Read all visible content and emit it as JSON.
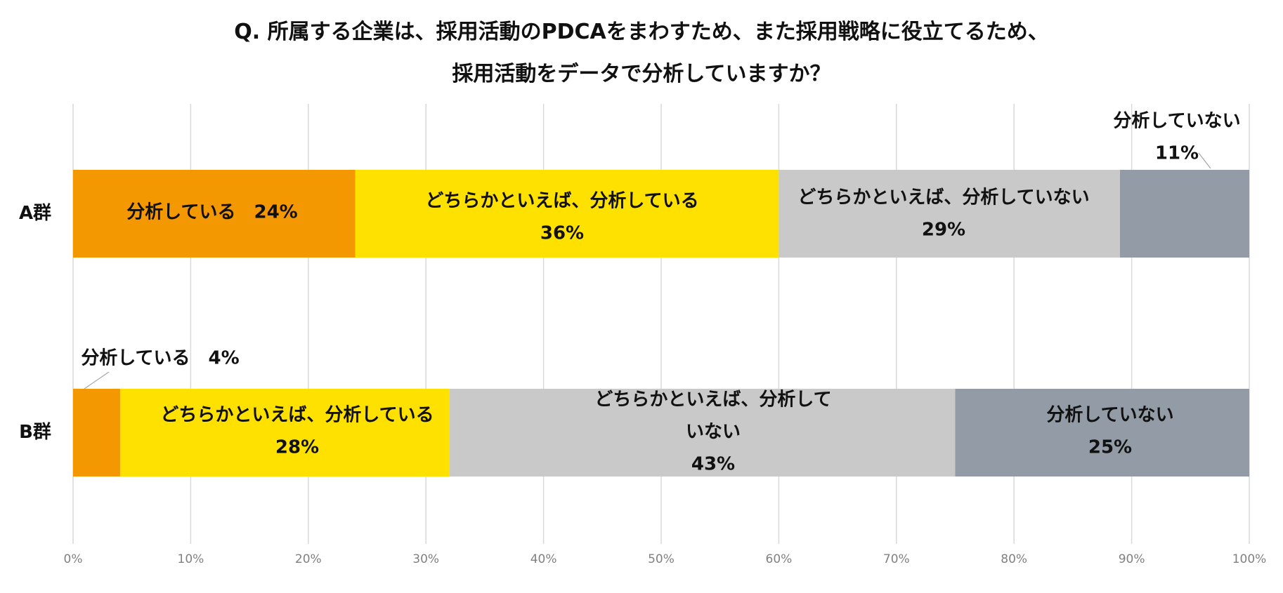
{
  "title": [
    "Q. 所属する企業は、採用活動のPDCAをまわすため、また採用戦略に役立てるため、",
    "採用活動をデータで分析していますか？"
  ],
  "chart_data": {
    "type": "bar",
    "orientation": "horizontal",
    "stacked": true,
    "categories": [
      "A群",
      "B群"
    ],
    "xlim": [
      0,
      100
    ],
    "x_ticks": [
      "0%",
      "10%",
      "20%",
      "30%",
      "40%",
      "50%",
      "60%",
      "70%",
      "80%",
      "90%",
      "100%"
    ],
    "grid": "vertical",
    "legend": "none",
    "series": [
      {
        "name": "分析している",
        "color": "#F39800",
        "values": [
          24,
          4
        ],
        "labels": [
          "分析している　24%",
          "分析している　4%"
        ]
      },
      {
        "name": "どちらかといえば、分析している",
        "color": "#FFE100",
        "values": [
          36,
          28
        ],
        "labels": [
          "どちらかといえば、分析している\n36%",
          "どちらかといえば、分析している\n28%"
        ]
      },
      {
        "name": "どちらかといえば、分析していない",
        "color": "#C9C9C9",
        "values": [
          29,
          43
        ],
        "labels": [
          "どちらかといえば、分析していない\n29%",
          "どちらかといえば、分析して\nいない\n43%"
        ]
      },
      {
        "name": "分析していない",
        "color": "#939BA7",
        "values": [
          11,
          25
        ],
        "labels": [
          "分析していない\n11%",
          "分析していない\n25%"
        ]
      }
    ]
  }
}
